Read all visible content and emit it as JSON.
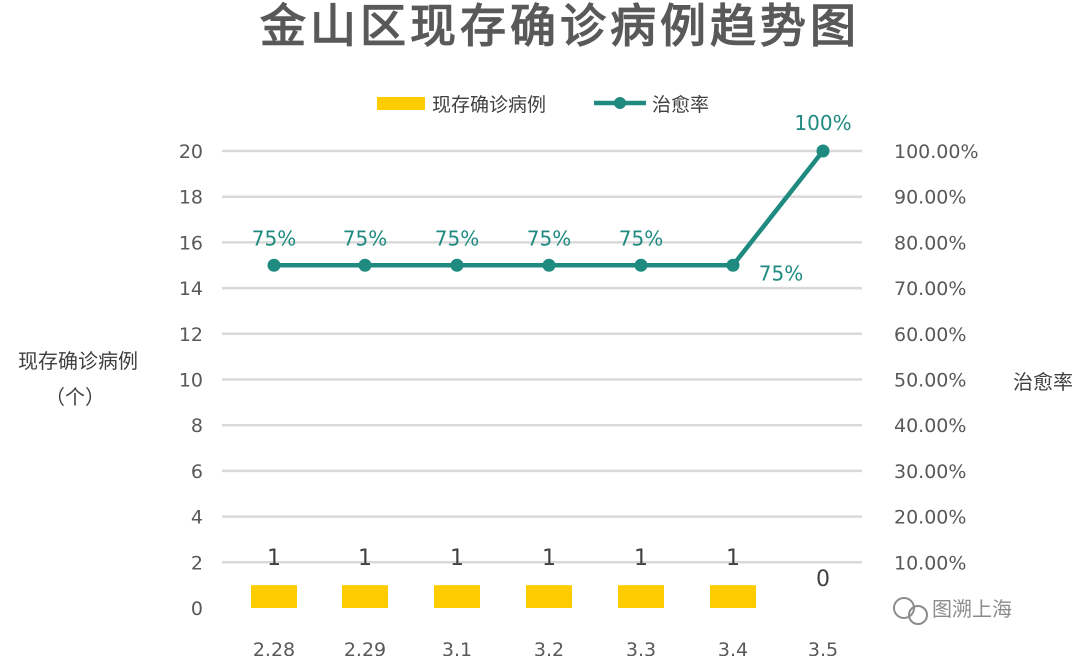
{
  "chart_data": {
    "type": "bar",
    "title": "金山区现存确诊病例趋势图",
    "categories": [
      "2.28",
      "2.29",
      "3.1",
      "3.2",
      "3.3",
      "3.4",
      "3.5"
    ],
    "series": [
      {
        "name": "现存确诊病例",
        "type": "bar",
        "axis": "left",
        "values": [
          1,
          1,
          1,
          1,
          1,
          1,
          0
        ],
        "labels": [
          "1",
          "1",
          "1",
          "1",
          "1",
          "1",
          "0"
        ]
      },
      {
        "name": "治愈率",
        "type": "line",
        "axis": "right",
        "values": [
          75,
          75,
          75,
          75,
          75,
          75,
          100
        ],
        "labels": [
          "75%",
          "75%",
          "75%",
          "75%",
          "75%",
          "75%",
          "100%"
        ]
      }
    ],
    "ylabel": "现存确诊病例\n（个）",
    "ylabel_lines": [
      "现存确诊病例",
      "（个）"
    ],
    "y2label": "治愈率",
    "ylim": [
      0,
      20
    ],
    "yticks": [
      "0",
      "2",
      "4",
      "6",
      "8",
      "10",
      "12",
      "14",
      "16",
      "18",
      "20"
    ],
    "y2lim": [
      0,
      100
    ],
    "y2ticks": [
      "10.00%",
      "20.00%",
      "30.00%",
      "40.00%",
      "50.00%",
      "60.00%",
      "70.00%",
      "80.00%",
      "90.00%",
      "100.00%"
    ],
    "grid": true,
    "legend_position": "top"
  },
  "colors": {
    "bar": "#ffcc00",
    "line": "#1f8a80",
    "grid": "#d9d9d9",
    "text": "#595959"
  },
  "watermark": {
    "text": "图溯上海",
    "icon": "wechat-icon"
  }
}
